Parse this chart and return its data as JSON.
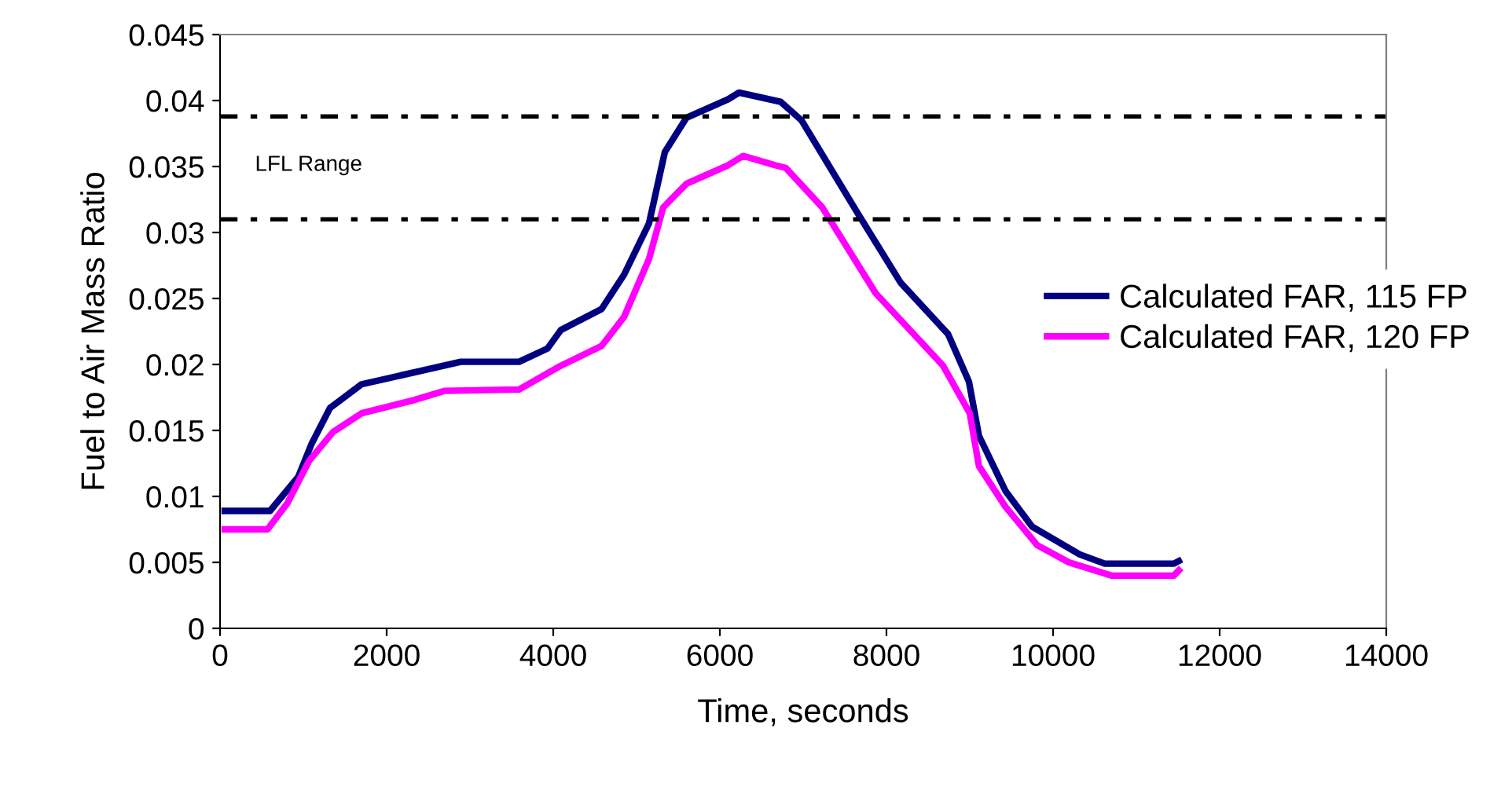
{
  "chart_data": {
    "type": "line",
    "xlabel": "Time, seconds",
    "ylabel": "Fuel to Air Mass Ratio",
    "xlim": [
      0,
      14000
    ],
    "xticks": [
      0,
      2000,
      4000,
      6000,
      8000,
      10000,
      12000,
      14000
    ],
    "ylim": [
      0,
      0.045
    ],
    "yticks": [
      0,
      0.005,
      0.01,
      0.015,
      0.02,
      0.025,
      0.03,
      0.035,
      0.04,
      0.045
    ],
    "grid": false,
    "legend": "right",
    "marker": "none",
    "line_style": "solid",
    "series": [
      {
        "name": "Calculated FAR, 115 FP",
        "color": "#000080",
        "x": [
          57,
          600,
          940,
          1100,
          1320,
          1700,
          2330,
          2890,
          3590,
          3930,
          4090,
          4580,
          4850,
          5150,
          5340,
          5600,
          6100,
          6230,
          6730,
          6980,
          7670,
          8170,
          8740,
          8990,
          9110,
          9430,
          9750,
          10320,
          10620,
          11450,
          11510
        ],
        "values": [
          0.0089,
          0.0089,
          0.0115,
          0.014,
          0.0167,
          0.0185,
          0.0194,
          0.0202,
          0.0202,
          0.0212,
          0.0226,
          0.0242,
          0.0268,
          0.0307,
          0.0361,
          0.0387,
          0.0401,
          0.0406,
          0.0399,
          0.0385,
          0.0313,
          0.0262,
          0.0223,
          0.0187,
          0.0146,
          0.0104,
          0.0077,
          0.0056,
          0.0049,
          0.0049,
          0.0051
        ]
      },
      {
        "name": "Calculated FAR, 120 FP",
        "color": "#ff00ff",
        "x": [
          57,
          570,
          810,
          1070,
          1360,
          1700,
          2330,
          2700,
          3590,
          4090,
          4580,
          4850,
          5150,
          5320,
          5600,
          6100,
          6280,
          6660,
          6790,
          7230,
          7870,
          8680,
          9000,
          9110,
          9430,
          9810,
          10190,
          10700,
          11450,
          11510
        ],
        "values": [
          0.0075,
          0.0075,
          0.0095,
          0.0127,
          0.0149,
          0.0163,
          0.0173,
          0.018,
          0.0181,
          0.0199,
          0.0214,
          0.0236,
          0.028,
          0.0319,
          0.0337,
          0.0351,
          0.0358,
          0.0351,
          0.0349,
          0.0319,
          0.0254,
          0.0199,
          0.0163,
          0.0123,
          0.0092,
          0.0063,
          0.005,
          0.004,
          0.004,
          0.0044
        ]
      }
    ],
    "ref_lines": [
      {
        "axis": "y",
        "value": 0.0388,
        "color": "#000000",
        "line_style": "dashed"
      },
      {
        "axis": "y",
        "value": 0.031,
        "color": "#000000",
        "line_style": "dashed"
      }
    ],
    "annotations": [
      "LFL Range"
    ]
  }
}
